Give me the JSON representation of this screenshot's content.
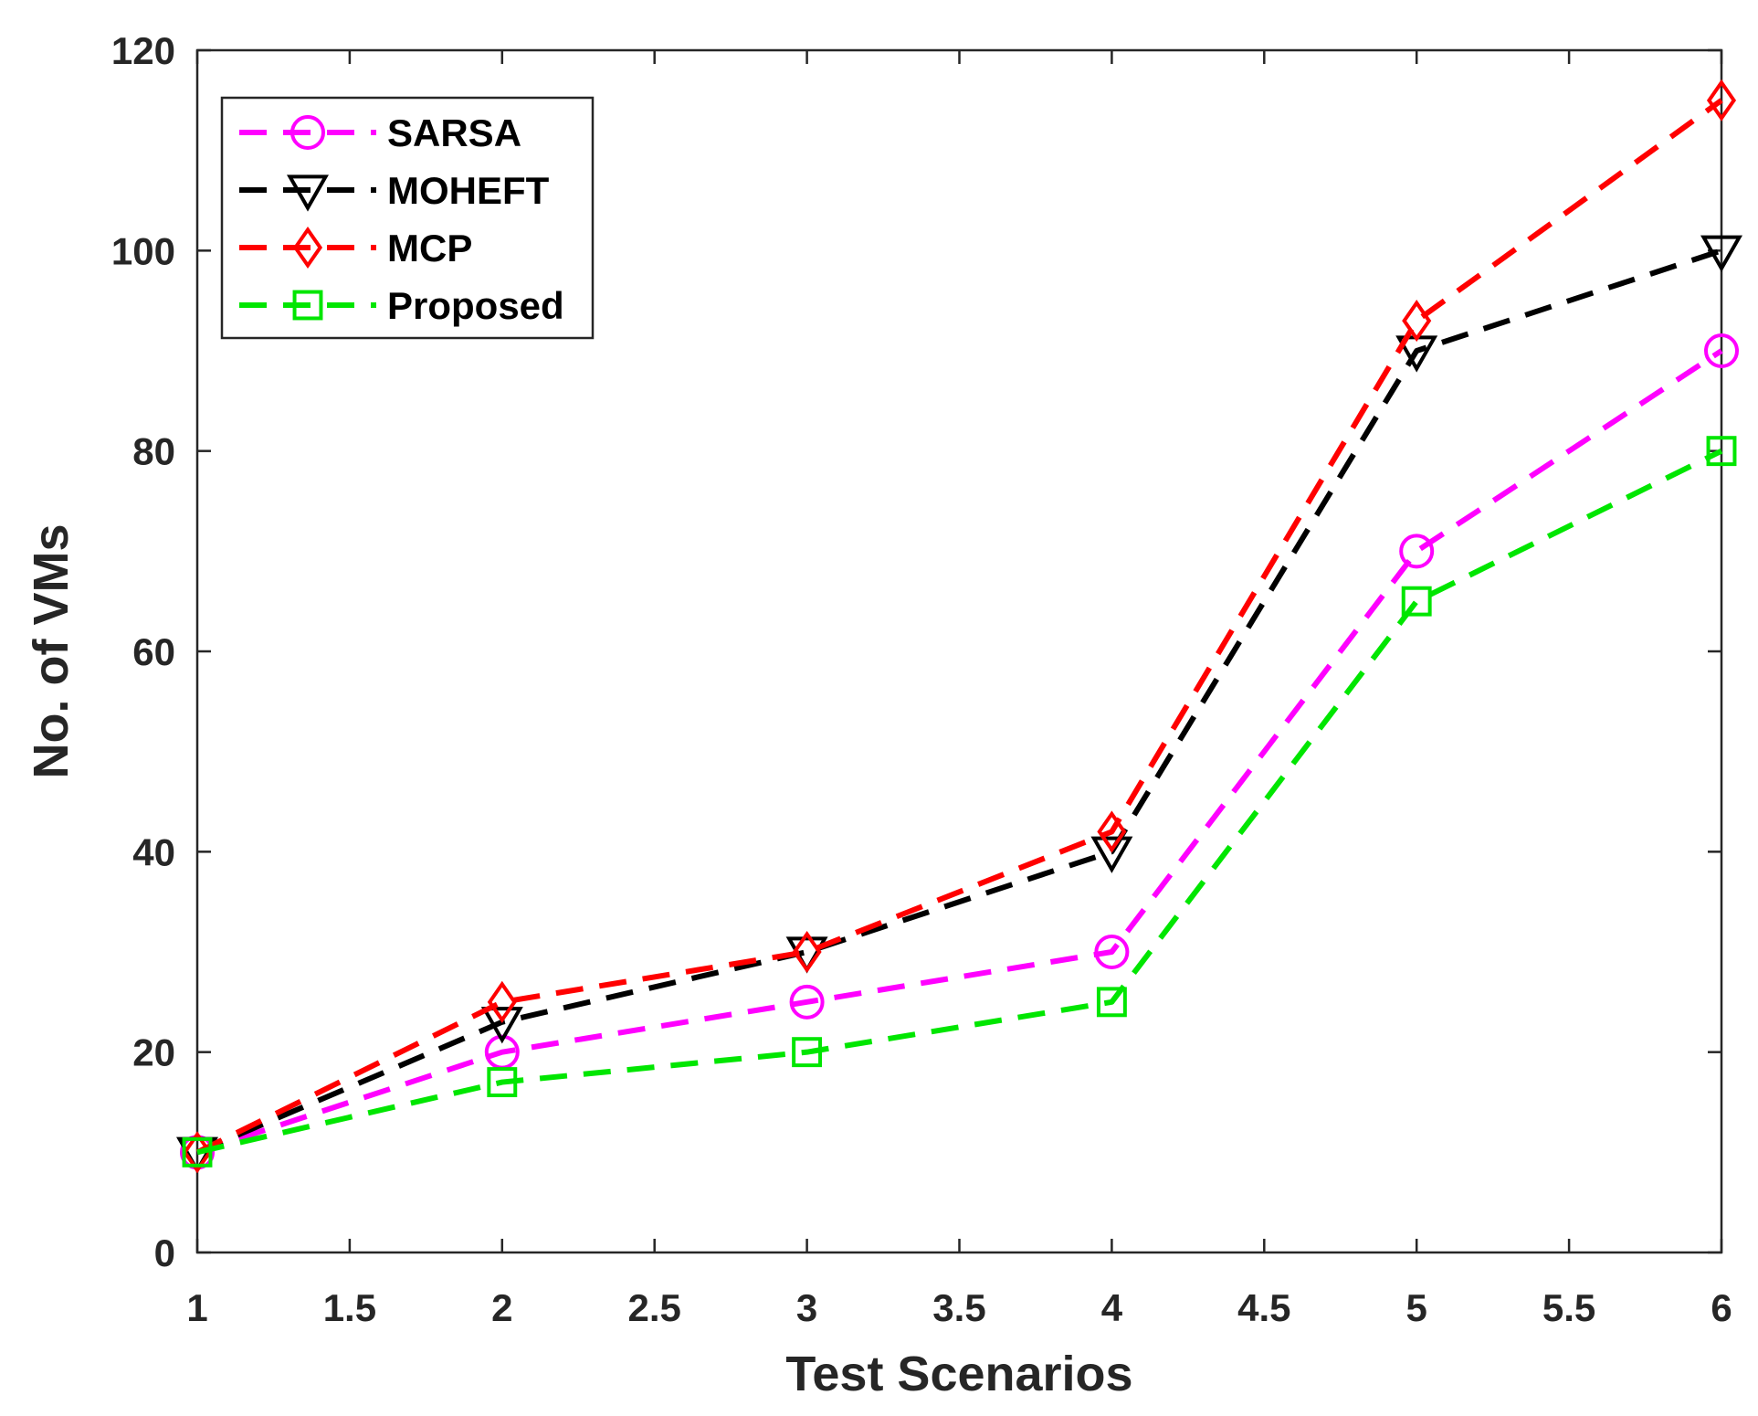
{
  "chart_data": {
    "type": "line",
    "title": "",
    "xlabel": "Test Scenarios",
    "ylabel": "No. of VMs",
    "xlim": [
      1,
      6
    ],
    "ylim": [
      0,
      120
    ],
    "xticks": [
      1,
      1.5,
      2,
      2.5,
      3,
      3.5,
      4,
      4.5,
      5,
      5.5,
      6
    ],
    "xtick_labels": [
      "1",
      "1.5",
      "2",
      "2.5",
      "3",
      "3.5",
      "4",
      "4.5",
      "5",
      "5.5",
      "6"
    ],
    "yticks": [
      0,
      20,
      40,
      60,
      80,
      100,
      120
    ],
    "ytick_labels": [
      "0",
      "20",
      "40",
      "60",
      "80",
      "100",
      "120"
    ],
    "grid": false,
    "legend_position": "top-left",
    "x": [
      1,
      2,
      3,
      4,
      5,
      6
    ],
    "series": [
      {
        "name": "SARSA",
        "values": [
          10,
          20,
          25,
          30,
          70,
          90
        ],
        "color": "#ff00ff",
        "marker": "circle",
        "line_style": "dashed"
      },
      {
        "name": "MOHEFT",
        "values": [
          10,
          23,
          30,
          40,
          90,
          100
        ],
        "color": "#000000",
        "marker": "triangle-down",
        "line_style": "dashed"
      },
      {
        "name": "MCP",
        "values": [
          10,
          25,
          30,
          42,
          93,
          115
        ],
        "color": "#ff0000",
        "marker": "diamond",
        "line_style": "dashed"
      },
      {
        "name": "Proposed",
        "values": [
          10,
          17,
          20,
          25,
          65,
          80
        ],
        "color": "#00e600",
        "marker": "square",
        "line_style": "dashed"
      }
    ]
  }
}
